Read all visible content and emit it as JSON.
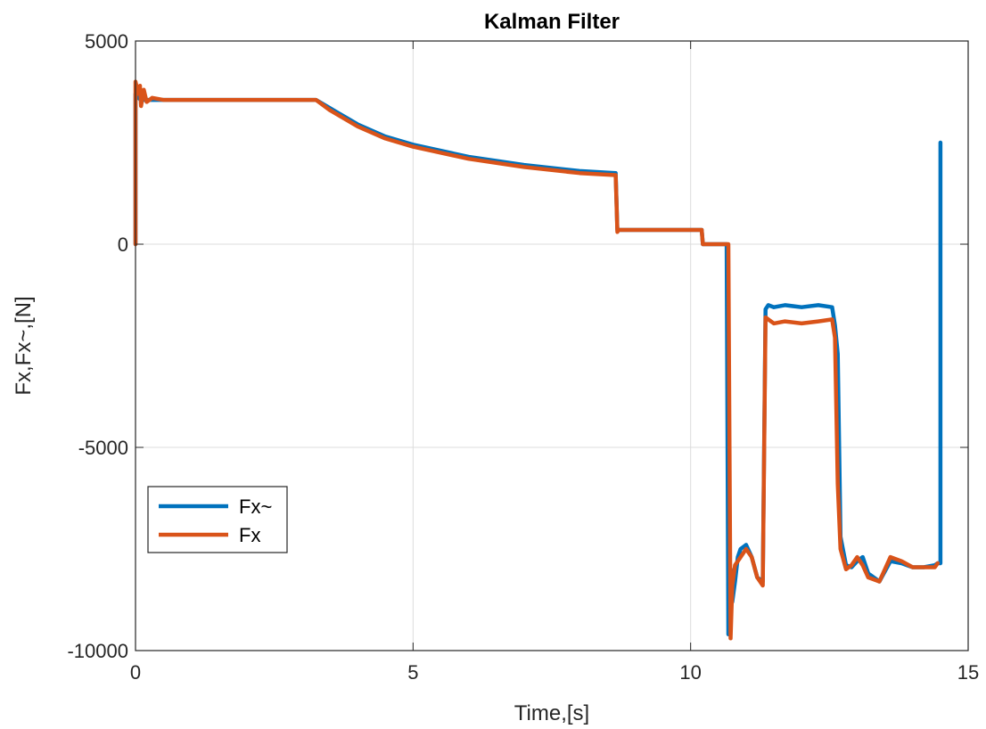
{
  "chart_data": {
    "type": "line",
    "title": "Kalman Filter",
    "xlabel": "Time,[s]",
    "ylabel": "Fx,Fx~,[N]",
    "xlim": [
      0,
      15
    ],
    "ylim": [
      -10000,
      5000
    ],
    "xticks": [
      0,
      5,
      10,
      15
    ],
    "xtick_labels": [
      "0",
      "5",
      "10",
      "15"
    ],
    "yticks": [
      -10000,
      -5000,
      0,
      5000
    ],
    "ytick_labels": [
      "-10000",
      "-5000",
      "0",
      "5000"
    ],
    "grid": true,
    "legend_position": "lower-left",
    "series": [
      {
        "name": "Fx~",
        "color": "#0072BD",
        "x": [
          0.0,
          0.0,
          0.05,
          0.1,
          0.2,
          0.5,
          1.0,
          2.0,
          3.0,
          3.25,
          3.5,
          4.0,
          4.5,
          5.0,
          6.0,
          7.0,
          8.0,
          8.65,
          8.68,
          8.7,
          9.0,
          9.5,
          10.0,
          10.2,
          10.22,
          10.25,
          10.4,
          10.6,
          10.65,
          10.68,
          10.72,
          10.75,
          10.8,
          10.85,
          10.9,
          11.0,
          11.1,
          11.2,
          11.3,
          11.35,
          11.4,
          11.5,
          11.7,
          12.0,
          12.3,
          12.55,
          12.6,
          12.65,
          12.7,
          12.8,
          12.9,
          13.0,
          13.1,
          13.2,
          13.4,
          13.6,
          13.8,
          14.0,
          14.2,
          14.4,
          14.45,
          14.5,
          14.5
        ],
        "y": [
          0,
          3700,
          3600,
          3550,
          3550,
          3550,
          3550,
          3550,
          3550,
          3550,
          3350,
          2950,
          2650,
          2450,
          2150,
          1950,
          1800,
          1750,
          350,
          350,
          350,
          350,
          350,
          350,
          0,
          0,
          0,
          0,
          0,
          -9600,
          -8000,
          -8800,
          -8300,
          -7700,
          -7500,
          -7400,
          -7700,
          -8200,
          -8300,
          -1600,
          -1500,
          -1550,
          -1500,
          -1550,
          -1500,
          -1550,
          -2000,
          -2700,
          -7200,
          -7900,
          -7950,
          -7800,
          -7700,
          -8100,
          -8300,
          -7800,
          -7850,
          -7950,
          -7950,
          -7900,
          -7850,
          -7850,
          2500
        ]
      },
      {
        "name": "Fx",
        "color": "#D95319",
        "x": [
          0.0,
          0.0,
          0.05,
          0.08,
          0.1,
          0.15,
          0.2,
          0.3,
          0.5,
          1.0,
          2.0,
          3.0,
          3.25,
          3.5,
          4.0,
          4.5,
          5.0,
          6.0,
          7.0,
          8.0,
          8.65,
          8.68,
          8.7,
          9.0,
          9.5,
          10.0,
          10.2,
          10.22,
          10.25,
          10.4,
          10.6,
          10.68,
          10.72,
          10.75,
          10.8,
          10.85,
          10.9,
          11.0,
          11.1,
          11.2,
          11.3,
          11.35,
          11.4,
          11.5,
          11.7,
          12.0,
          12.3,
          12.55,
          12.6,
          12.65,
          12.7,
          12.8,
          12.9,
          13.0,
          13.1,
          13.2,
          13.4,
          13.6,
          13.8,
          14.0,
          14.2,
          14.4,
          14.45
        ],
        "y": [
          0,
          4000,
          3700,
          3900,
          3400,
          3800,
          3500,
          3600,
          3550,
          3550,
          3550,
          3550,
          3550,
          3300,
          2900,
          2600,
          2400,
          2100,
          1900,
          1750,
          1700,
          300,
          350,
          350,
          350,
          350,
          350,
          0,
          0,
          0,
          0,
          0,
          -9700,
          -8400,
          -7900,
          -7800,
          -7700,
          -7500,
          -7700,
          -8200,
          -8400,
          -1800,
          -1850,
          -1950,
          -1900,
          -1950,
          -1900,
          -1850,
          -2300,
          -5900,
          -7500,
          -8000,
          -7900,
          -7700,
          -7900,
          -8200,
          -8300,
          -7700,
          -7800,
          -7950,
          -7950,
          -7950,
          -7850
        ]
      }
    ]
  }
}
